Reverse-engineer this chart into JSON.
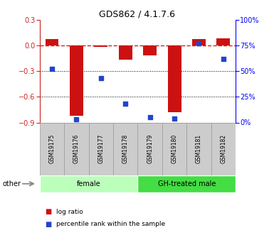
{
  "title": "GDS862 / 4.1.7.6",
  "samples": [
    "GSM19175",
    "GSM19176",
    "GSM19177",
    "GSM19178",
    "GSM19179",
    "GSM19180",
    "GSM19181",
    "GSM19182"
  ],
  "log_ratio": [
    0.07,
    -0.82,
    -0.02,
    -0.17,
    -0.12,
    -0.78,
    0.07,
    0.08
  ],
  "percentile_rank": [
    52,
    3,
    43,
    18,
    5,
    4,
    77,
    62
  ],
  "groups": [
    {
      "label": "female",
      "start": 0,
      "end": 4,
      "color": "#bbffbb"
    },
    {
      "label": "GH-treated male",
      "start": 4,
      "end": 8,
      "color": "#44dd44"
    }
  ],
  "ylim_left": [
    -0.9,
    0.3
  ],
  "ylim_right": [
    0,
    100
  ],
  "yticks_left": [
    -0.9,
    -0.6,
    -0.3,
    0.0,
    0.3
  ],
  "yticks_right": [
    0,
    25,
    50,
    75,
    100
  ],
  "bar_color": "#cc1111",
  "dot_color": "#2244cc",
  "hline_color": "#cc2222",
  "hline_style": "--",
  "grid_color": "#000000",
  "background_color": "#ffffff",
  "other_label": "other",
  "legend_log_ratio": "log ratio",
  "legend_percentile": "percentile rank within the sample",
  "sample_box_color": "#cccccc",
  "sample_box_edge": "#999999"
}
